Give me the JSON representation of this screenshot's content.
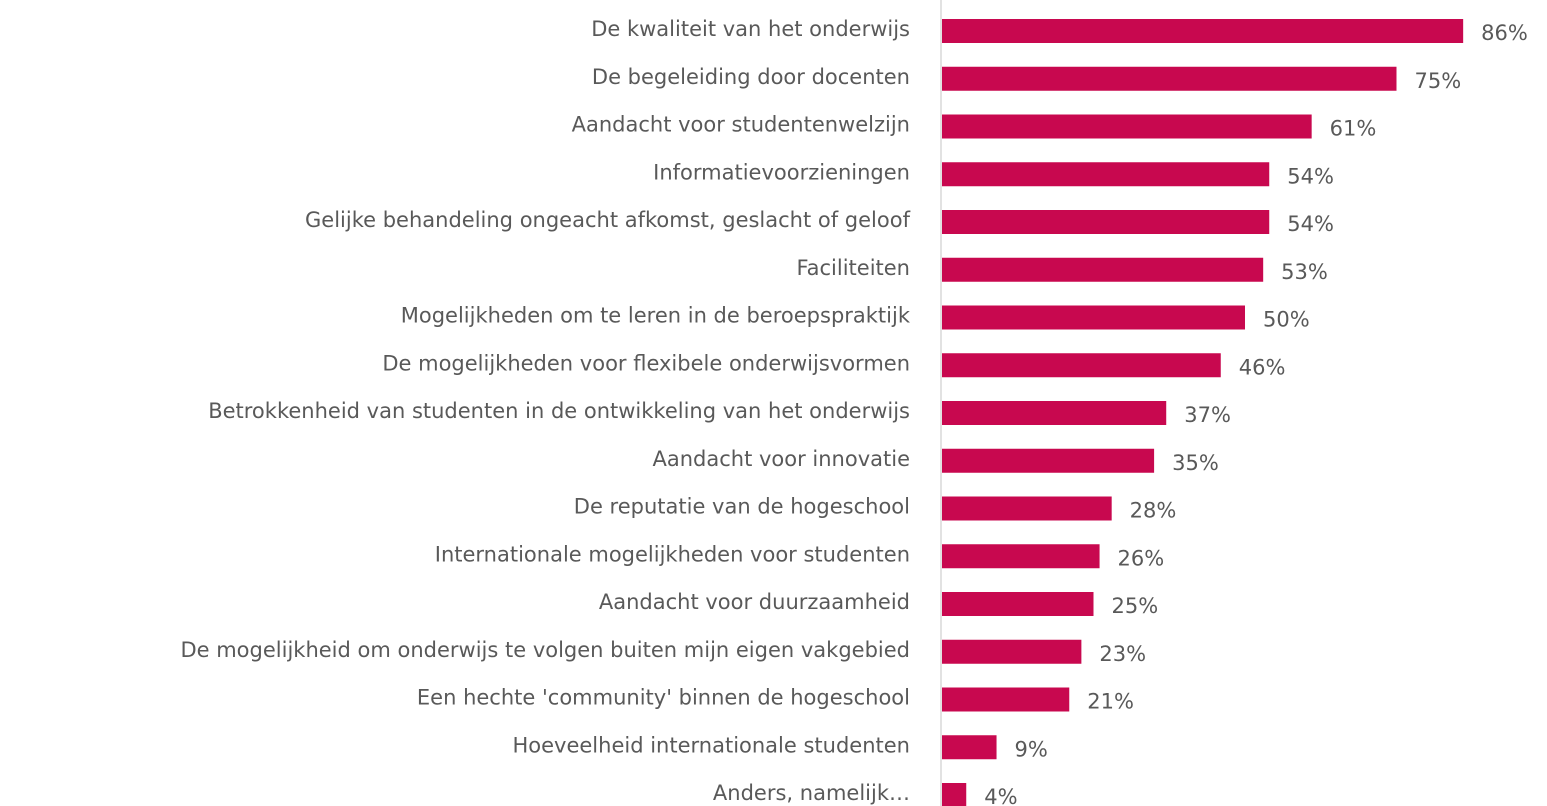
{
  "chart_data": {
    "type": "bar",
    "orientation": "horizontal",
    "color": "#c8084f",
    "categories": [
      "De kwaliteit van het onderwijs",
      "De begeleiding door docenten",
      "Aandacht voor studentenwelzijn",
      "Informatievoorzieningen",
      "Gelijke behandeling ongeacht afkomst, geslacht of geloof",
      "Faciliteiten",
      "Mogelijkheden om te leren in de beroepspraktijk",
      "De mogelijkheden voor flexibele onderwijsvormen",
      "Betrokkenheid van studenten in de ontwikkeling van het onderwijs",
      "Aandacht voor innovatie",
      "De reputatie van de hogeschool",
      "Internationale mogelijkheden voor studenten",
      "Aandacht voor duurzaamheid",
      "De mogelijkheid om onderwijs te volgen buiten mijn eigen vakgebied",
      "Een hechte 'community' binnen de hogeschool",
      "Hoeveelheid internationale studenten",
      "Anders, namelijk…"
    ],
    "values": [
      86,
      75,
      61,
      54,
      54,
      53,
      50,
      46,
      37,
      35,
      28,
      26,
      25,
      23,
      21,
      9,
      4
    ],
    "value_labels": [
      "86%",
      "75%",
      "61%",
      "54%",
      "54%",
      "53%",
      "50%",
      "46%",
      "37%",
      "35%",
      "28%",
      "26%",
      "25%",
      "23%",
      "21%",
      "9%",
      "4%"
    ]
  }
}
